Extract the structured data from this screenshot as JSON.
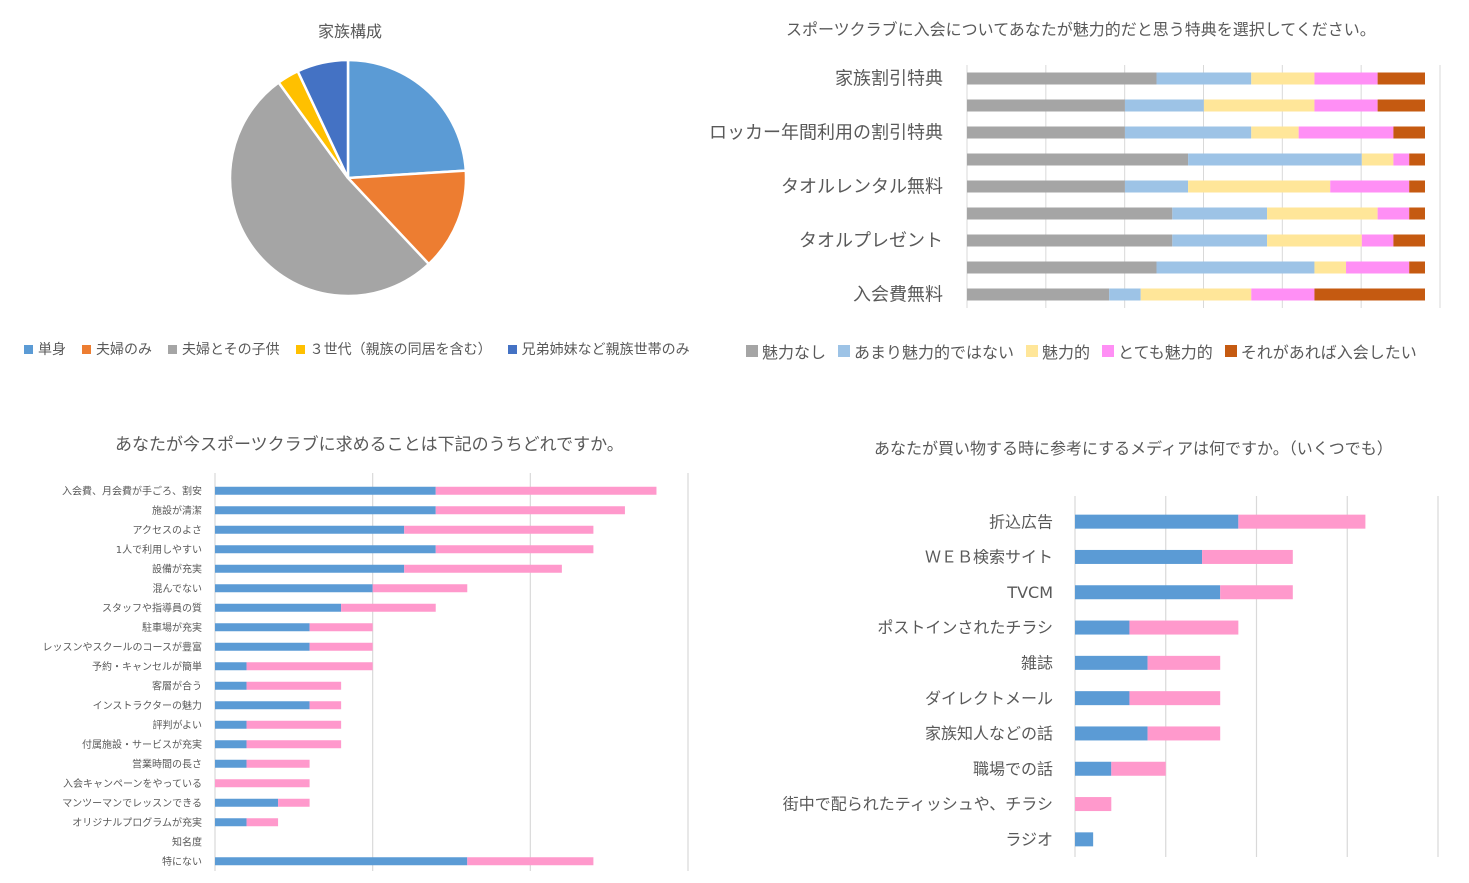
{
  "colors": {
    "blue": "#5b9bd5",
    "orange": "#ed7d31",
    "gray": "#a5a5a5",
    "gold": "#ffc000",
    "darkblue": "#4472c4",
    "pink": "#ff99cc",
    "lightblue": "#9dc3e6",
    "lightyellow": "#ffe699",
    "magenta": "#ff8ff5",
    "burnt": "#c55a11",
    "grid": "#d9d9d9"
  },
  "pie": {
    "chart_data": {
      "type": "pie",
      "title": "家族構成",
      "categories": [
        "単身",
        "夫婦のみ",
        "夫婦とその子供",
        "３世代（親族の同居を含む）",
        "兄弟姉妹など親族世帯のみ"
      ],
      "values": [
        24,
        14,
        52,
        3,
        7
      ],
      "colors": [
        "#5b9bd5",
        "#ed7d31",
        "#a5a5a5",
        "#ffc000",
        "#4472c4"
      ],
      "legend": "bottom"
    }
  },
  "stack": {
    "chart_data": {
      "type": "bar",
      "orientation": "horizontal",
      "stacked": "percent",
      "title": "スポーツクラブに入会についてあなたが魅力的だと思う特典を選択してください。",
      "categories": [
        "家族割引特典",
        "",
        "ロッカー年間利用の割引特典",
        "",
        "タオルレンタル無料",
        "",
        "タオルプレゼント",
        "",
        "入会費無料"
      ],
      "series": [
        {
          "name": "魅力なし",
          "color": "#a5a5a5",
          "values": [
            12,
            10,
            10,
            14,
            10,
            13,
            13,
            12,
            9
          ]
        },
        {
          "name": "あまり魅力的ではない",
          "color": "#9dc3e6",
          "values": [
            6,
            5,
            8,
            11,
            4,
            6,
            6,
            10,
            2
          ]
        },
        {
          "name": "魅力的",
          "color": "#ffe699",
          "values": [
            4,
            7,
            3,
            2,
            9,
            7,
            6,
            2,
            7
          ]
        },
        {
          "name": "とても魅力的",
          "color": "#ff8ff5",
          "values": [
            4,
            4,
            6,
            1,
            5,
            2,
            2,
            4,
            4
          ]
        },
        {
          "name": "それがあれば入会したい",
          "color": "#c55a11",
          "values": [
            3,
            3,
            2,
            1,
            1,
            1,
            2,
            1,
            7
          ]
        }
      ],
      "legend": "bottom"
    }
  },
  "want": {
    "chart_data": {
      "type": "bar",
      "orientation": "horizontal",
      "stacked": true,
      "title": "あなたが今スポーツクラブに求めることは下記のうちどれですか。",
      "categories": [
        "入会費、月会費が手ごろ、割安",
        "施設が清潔",
        "アクセスのよさ",
        "1人で利用しやすい",
        "設備が充実",
        "混んでない",
        "スタッフや指導員の質",
        "駐車場が充実",
        "レッスンやスクールのコースが豊富",
        "予約・キャンセルが簡単",
        "客層が合う",
        "インストラクターの魅力",
        "評判がよい",
        "付属施設・サービスが充実",
        "営業時間の長さ",
        "入会キャンペーンをやっている",
        "マンツーマンでレッスンできる",
        "オリジナルプログラムが充実",
        "知名度",
        "特にない"
      ],
      "series": [
        {
          "color": "#5b9bd5",
          "values": [
            14,
            14,
            12,
            14,
            12,
            10,
            8,
            6,
            6,
            2,
            2,
            6,
            2,
            2,
            2,
            0,
            4,
            2,
            0,
            16
          ]
        },
        {
          "color": "#ff99cc",
          "values": [
            14,
            12,
            12,
            10,
            10,
            6,
            6,
            4,
            4,
            8,
            6,
            2,
            6,
            6,
            4,
            6,
            2,
            2,
            0,
            8
          ]
        }
      ],
      "xlim": [
        0,
        30
      ],
      "grid": true
    }
  },
  "media": {
    "chart_data": {
      "type": "bar",
      "orientation": "horizontal",
      "stacked": true,
      "title": "あなたが買い物する時に参考にするメディアは何ですか。（いくつでも）",
      "categories": [
        "折込広告",
        "ＷＥＢ検索サイト",
        "TVCM",
        "ポストインされたチラシ",
        "雑誌",
        "ダイレクトメール",
        "家族知人などの話",
        "職場での話",
        "街中で配られたティッシュや、チラシ",
        "ラジオ"
      ],
      "series": [
        {
          "color": "#5b9bd5",
          "values": [
            18,
            14,
            16,
            6,
            8,
            6,
            8,
            4,
            0,
            2
          ]
        },
        {
          "color": "#ff99cc",
          "values": [
            14,
            10,
            8,
            12,
            8,
            10,
            8,
            6,
            4,
            0
          ]
        }
      ],
      "xlim": [
        0,
        40
      ],
      "grid": true
    }
  }
}
